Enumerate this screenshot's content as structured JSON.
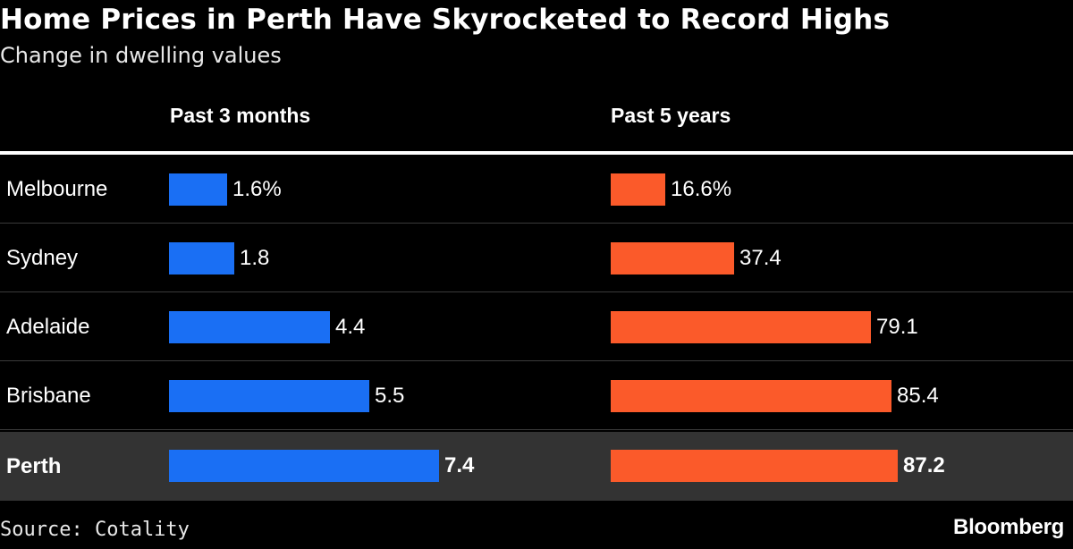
{
  "title": "Home Prices in Perth Have Skyrocketed to Record Highs",
  "subtitle": "Change in dwelling values",
  "source": "Source: Cotality",
  "brand": "Bloomberg",
  "colors": {
    "blue": "#1a6ff4",
    "orange": "#fb5a2a",
    "highlight_row": "#333333"
  },
  "chart_data": {
    "type": "bar",
    "orientation": "horizontal",
    "categories": [
      "Melbourne",
      "Sydney",
      "Adelaide",
      "Brisbane",
      "Perth"
    ],
    "highlighted_category": "Perth",
    "series": [
      {
        "name": "Past 3 months",
        "values": [
          1.6,
          1.8,
          4.4,
          5.5,
          7.4
        ],
        "labels": [
          "1.6%",
          "1.8",
          "4.4",
          "5.5",
          "7.4"
        ],
        "color": "#1a6ff4"
      },
      {
        "name": "Past 5 years",
        "values": [
          16.6,
          37.4,
          79.1,
          85.4,
          87.2
        ],
        "labels": [
          "16.6%",
          "37.4",
          "79.1",
          "85.4",
          "87.2"
        ],
        "color": "#fb5a2a"
      }
    ]
  }
}
